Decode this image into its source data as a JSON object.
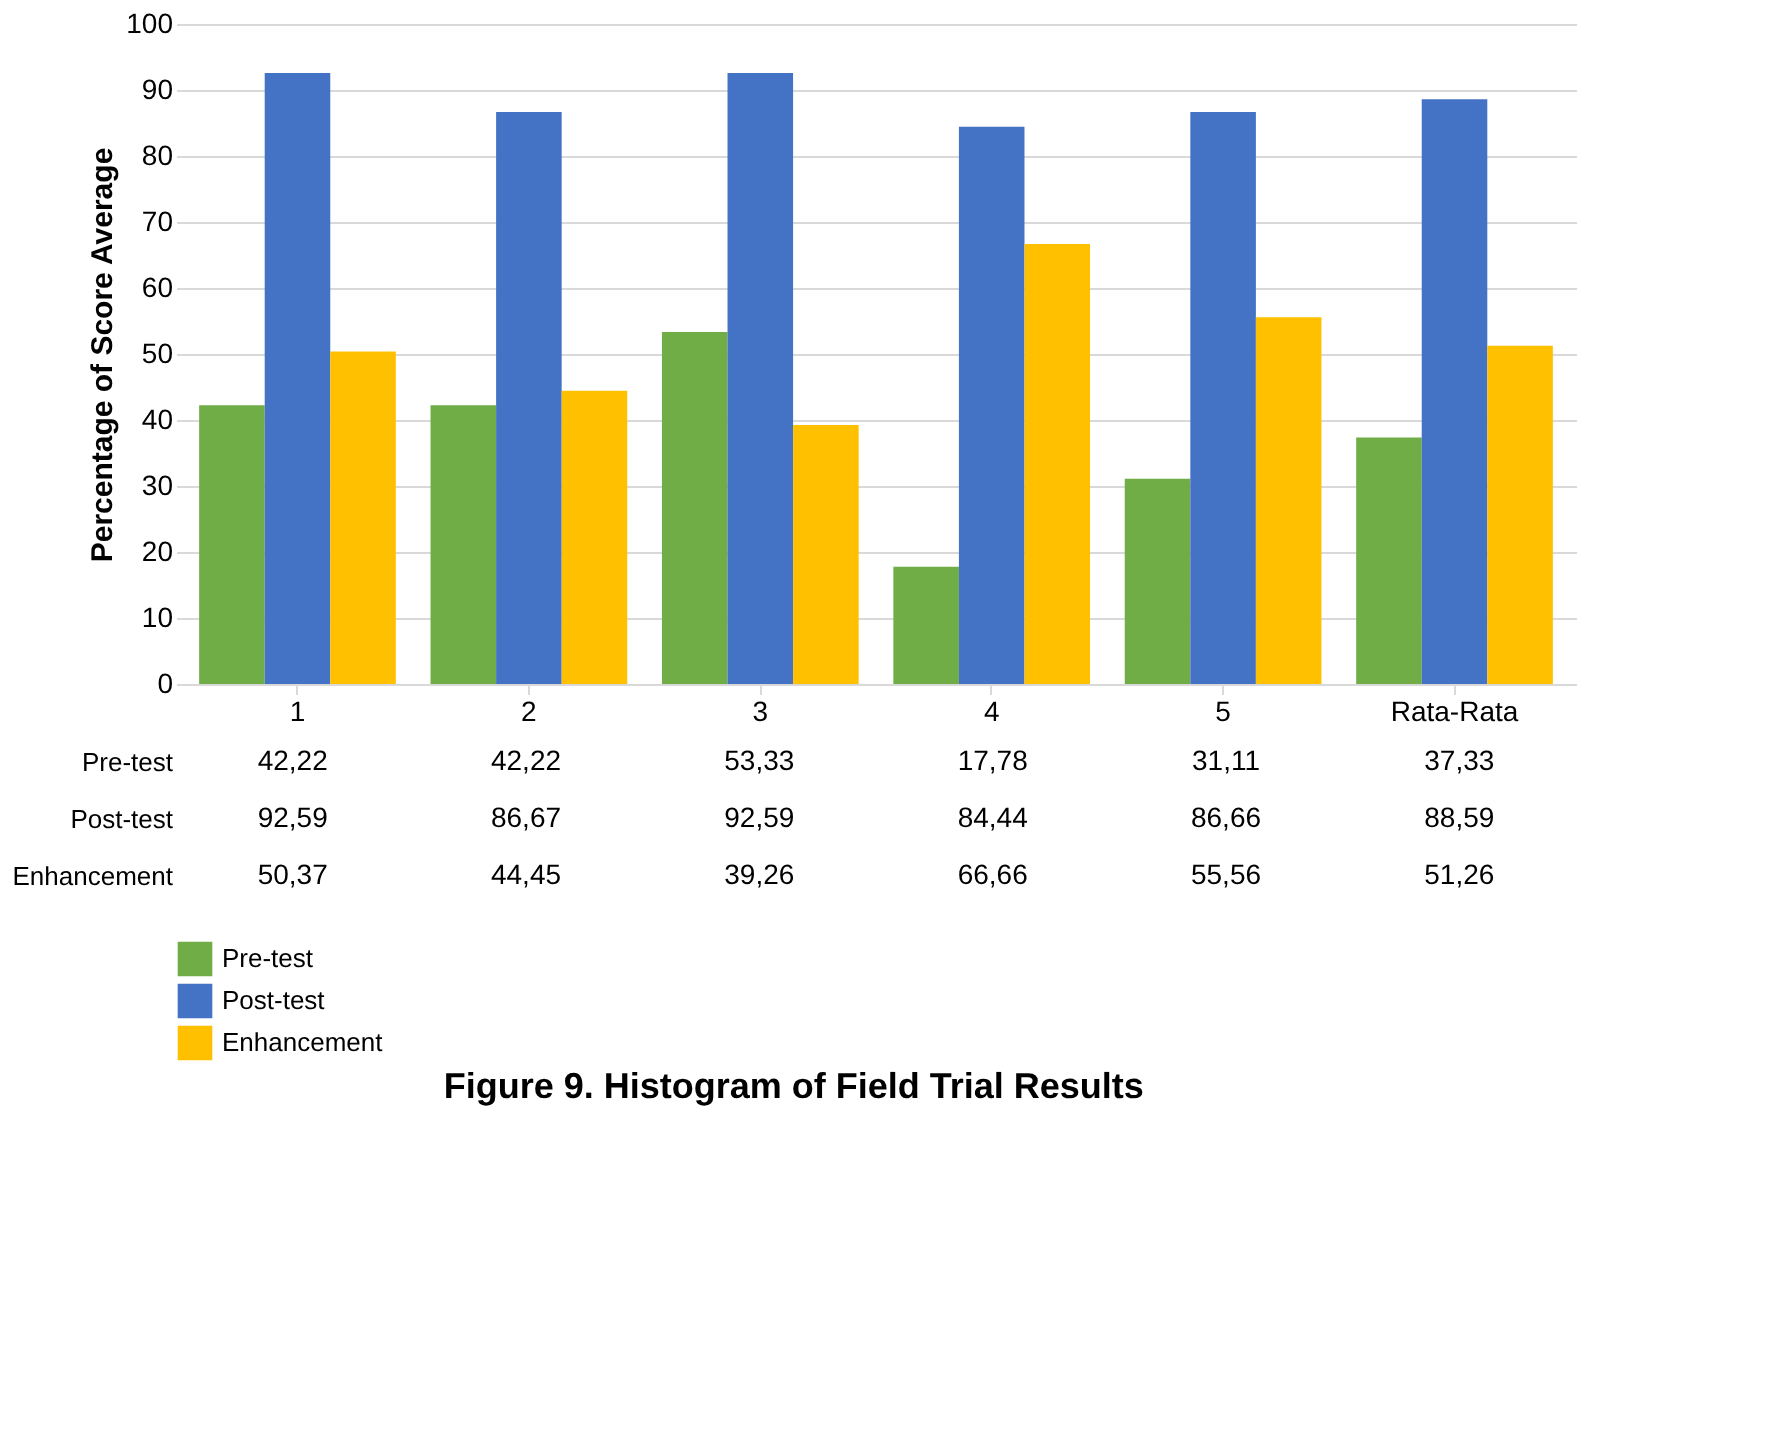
{
  "chart_data": {
    "type": "bar",
    "ylabel": "Percentage of Score Average",
    "categories": [
      "1",
      "2",
      "3",
      "4",
      "5",
      "Rata-Rata"
    ],
    "series": [
      {
        "name": "Pre-test",
        "color": "#70ad47",
        "values": [
          42.22,
          42.22,
          53.33,
          17.78,
          31.11,
          37.33
        ],
        "value_labels": [
          "42,22",
          "42,22",
          "53,33",
          "17,78",
          "31,11",
          "37,33"
        ]
      },
      {
        "name": "Post-test",
        "color": "#4472c4",
        "values": [
          92.59,
          86.67,
          92.59,
          84.44,
          86.66,
          88.59
        ],
        "value_labels": [
          "92,59",
          "86,67",
          "92,59",
          "84,44",
          "86,66",
          "88,59"
        ]
      },
      {
        "name": "Enhancement",
        "color": "#ffc000",
        "values": [
          50.37,
          44.45,
          39.26,
          66.66,
          55.56,
          51.26
        ],
        "value_labels": [
          "50,37",
          "44,45",
          "39,26",
          "66,66",
          "55,56",
          "51,26"
        ]
      }
    ],
    "ylim": [
      0,
      100
    ],
    "yticks": [
      0,
      10,
      20,
      30,
      40,
      50,
      60,
      70,
      80,
      90,
      100
    ],
    "grid": "y",
    "legend": "bottom left",
    "annotations": [
      "Figure 9. Histogram of Field Trial Results"
    ]
  }
}
